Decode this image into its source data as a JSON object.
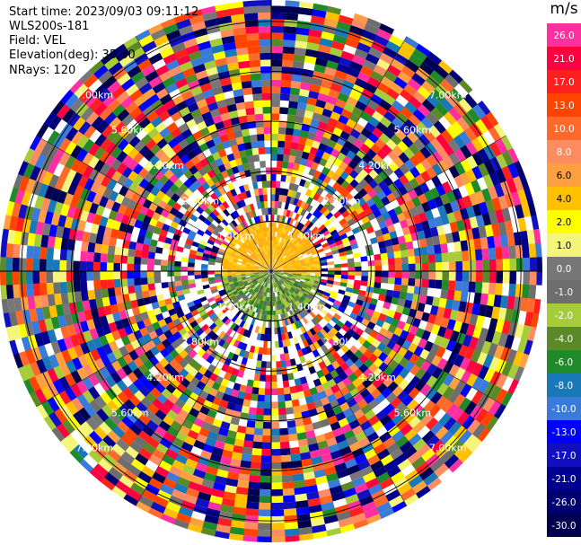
{
  "header": {
    "start_time": "Start time: 2023/09/03 09:11:12",
    "instrument": "WLS200s-181",
    "field": "Field: VEL",
    "elevation": "Elevation(deg): 35.30",
    "nrays": "NRays: 120"
  },
  "colorbar": {
    "unit": "m/s",
    "levels": [
      {
        "label": "26.0",
        "color": "#ff2fa0"
      },
      {
        "label": "21.0",
        "color": "#ff0040"
      },
      {
        "label": "17.0",
        "color": "#ff1f1f"
      },
      {
        "label": "13.0",
        "color": "#ff4400"
      },
      {
        "label": "10.0",
        "color": "#ff6a2a"
      },
      {
        "label": "8.0",
        "color": "#ff8c60"
      },
      {
        "label": "6.0",
        "color": "#ffa040"
      },
      {
        "label": "4.0",
        "color": "#ffc000"
      },
      {
        "label": "2.0",
        "color": "#ffff00"
      },
      {
        "label": "1.0",
        "color": "#f5f57a"
      },
      {
        "label": "0.0",
        "color": "#777777"
      },
      {
        "label": "-1.0",
        "color": "#6e6e6e"
      },
      {
        "label": "-2.0",
        "color": "#a6cc3a"
      },
      {
        "label": "-4.0",
        "color": "#5a8a28"
      },
      {
        "label": "-6.0",
        "color": "#1f8a2a"
      },
      {
        "label": "-8.0",
        "color": "#1878b8"
      },
      {
        "label": "-10.0",
        "color": "#3a7ad8"
      },
      {
        "label": "-13.0",
        "color": "#0000ff"
      },
      {
        "label": "-17.0",
        "color": "#1010c0"
      },
      {
        "label": "-21.0",
        "color": "#000090"
      },
      {
        "label": "-26.0",
        "color": "#000070"
      },
      {
        "label": "-30.0",
        "color": "#000050"
      }
    ]
  },
  "chart_data": {
    "type": "heatmap",
    "projection": "ppi-polar",
    "field": "VEL",
    "unit": "m/s",
    "elevation_deg": 35.3,
    "nrays": 120,
    "range_rings": [
      {
        "label": "1.40km",
        "range_km": 1.4
      },
      {
        "label": "2.80km",
        "range_km": 2.8
      },
      {
        "label": "4.20km",
        "range_km": 4.2
      },
      {
        "label": "5.60km",
        "range_km": 5.6
      },
      {
        "label": "7.00km",
        "range_km": 7.0
      }
    ],
    "max_range_km": 7.6,
    "inner_region": {
      "range_km": 1.4,
      "description_values": {
        "north_half_vel": 4.0,
        "south_half_vel": -2.0
      }
    },
    "outer_region": "noisy velocities across full colour scale",
    "grid": true
  }
}
